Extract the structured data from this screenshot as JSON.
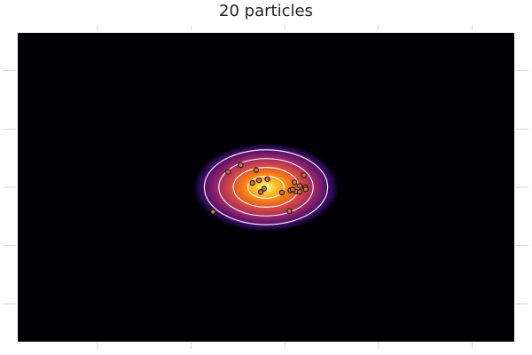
{
  "chart_data": {
    "type": "scatter",
    "title": "20 particles",
    "xlabel": "",
    "ylabel": "",
    "xlim": [
      -5.3,
      5.3
    ],
    "ylim": [
      -5.3,
      5.3
    ],
    "xticks": [
      -3.6,
      -1.6,
      0.4,
      2.4,
      4.4
    ],
    "yticks": [
      -4.0,
      -2.0,
      0.0,
      2.0,
      4.0
    ],
    "grid": true,
    "legend": "none",
    "density": {
      "colormap": "inferno",
      "center": [
        0,
        0
      ],
      "sigma": [
        1.0,
        0.5
      ],
      "contour_levels": [
        0.25,
        0.45,
        0.65,
        0.85
      ]
    },
    "particles": {
      "name": "",
      "color": "#e0743a",
      "x": [
        -0.81,
        -0.54,
        -0.29,
        -0.21,
        -0.15,
        -0.04,
        -0.11,
        0.03,
        0.34,
        0.64,
        0.72,
        0.61,
        0.81,
        0.52,
        0.5,
        0.72,
        0.84,
        0.85,
        -1.13,
        0.57
      ],
      "y": [
        0.53,
        0.76,
        0.15,
        0.59,
        0.24,
        -0.05,
        -0.16,
        0.28,
        -0.18,
        -0.15,
        0.05,
        0.17,
        0.41,
        -0.11,
        -0.82,
        -0.16,
        0.0,
        -0.07,
        -0.84,
        -0.08
      ]
    },
    "colors": {
      "background": "#000004",
      "contour_line": "#ffffff",
      "marker_stroke": "#1a1a1a"
    }
  }
}
